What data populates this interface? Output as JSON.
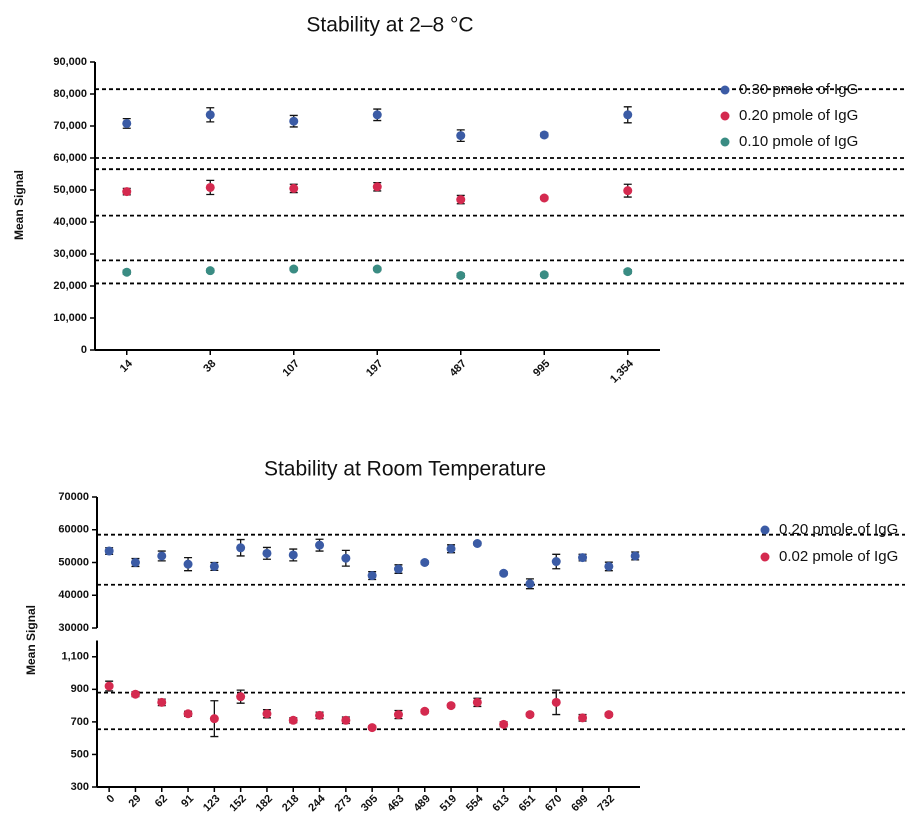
{
  "chart_data": [
    {
      "type": "scatter",
      "title": "Stability at 2–8 °C",
      "y_label": "Mean Signal",
      "categories": [
        "14",
        "38",
        "107",
        "197",
        "487",
        "995",
        "1,354"
      ],
      "series": [
        {
          "name": "0.30 pmole of IgG",
          "color": "#3b5ba5",
          "values": [
            70800,
            73500,
            71500,
            73500,
            67000,
            67200,
            73500
          ],
          "errors": [
            1500,
            2200,
            1800,
            1800,
            1800,
            600,
            2500
          ]
        },
        {
          "name": "0.20 pmole of IgG",
          "color": "#d42a4f",
          "values": [
            49500,
            50800,
            50500,
            51000,
            47000,
            47500,
            49800
          ],
          "errors": [
            1000,
            2200,
            1300,
            1300,
            1300,
            500,
            2000
          ]
        },
        {
          "name": "0.10 pmole of IgG",
          "color": "#3a8c83",
          "values": [
            24300,
            24800,
            25300,
            25300,
            23300,
            23500,
            24500
          ],
          "errors": [
            600,
            500,
            500,
            500,
            600,
            500,
            600
          ]
        }
      ],
      "ylim": [
        0,
        90000
      ],
      "yticks": [
        0,
        {
          "value": 10000,
          "label": "10,000"
        },
        {
          "value": 20000,
          "label": "20,000"
        },
        {
          "value": 30000,
          "label": "30,000"
        },
        {
          "value": 40000,
          "label": "40,000"
        },
        {
          "value": 50000,
          "label": "50,000"
        },
        {
          "value": 60000,
          "label": "60,000"
        },
        {
          "value": 70000,
          "label": "70,000"
        },
        {
          "value": 80000,
          "label": "80,000"
        },
        {
          "value": 90000,
          "label": "90,000"
        }
      ],
      "reference_lines": [
        81500,
        60000,
        56500,
        42000,
        28000,
        20800
      ]
    },
    {
      "type": "scatter",
      "title": "Stability at Room Temperature",
      "y_label": "Mean Signal",
      "categories": [
        "0",
        "29",
        "62",
        "91",
        "123",
        "152",
        "182",
        "218",
        "244",
        "273",
        "305",
        "463",
        "489",
        "519",
        "554",
        "613",
        "651",
        "670",
        "699",
        "732",
        null
      ],
      "series": [
        {
          "name": "0.20 pmole of IgG",
          "color": "#3b5ba5",
          "values": [
            53500,
            50000,
            52000,
            49500,
            48800,
            54500,
            52800,
            52300,
            55300,
            51300,
            46000,
            48000,
            50000,
            54200,
            55800,
            46700,
            43500,
            50300,
            51500,
            48800,
            52000
          ],
          "errors": [
            1000,
            1200,
            1500,
            2000,
            1200,
            2500,
            1800,
            1800,
            1800,
            2400,
            1200,
            1300,
            500,
            1200,
            500,
            500,
            1500,
            2200,
            1000,
            1300,
            1200
          ]
        },
        {
          "name": "0.02 pmole of IgG",
          "color": "#d42a4f",
          "axis": "y2",
          "values": [
            920,
            870,
            820,
            750,
            720,
            855,
            750,
            710,
            740,
            710,
            665,
            745,
            765,
            800,
            820,
            685,
            745,
            820,
            725,
            745,
            null
          ],
          "errors": [
            30,
            15,
            20,
            15,
            110,
            40,
            25,
            15,
            20,
            20,
            10,
            25,
            10,
            10,
            25,
            15,
            10,
            75,
            20,
            10,
            null
          ]
        }
      ],
      "ylim": [
        30000,
        70000
      ],
      "yticks": [
        30000,
        40000,
        50000,
        60000,
        70000
      ],
      "y2lim": [
        300,
        1200
      ],
      "y2ticks": [
        300,
        500,
        700,
        900,
        {
          "value": 1100,
          "label": "1,100"
        }
      ],
      "reference_lines": [
        58500,
        43200
      ],
      "y2_reference_lines": [
        880,
        655
      ]
    }
  ]
}
